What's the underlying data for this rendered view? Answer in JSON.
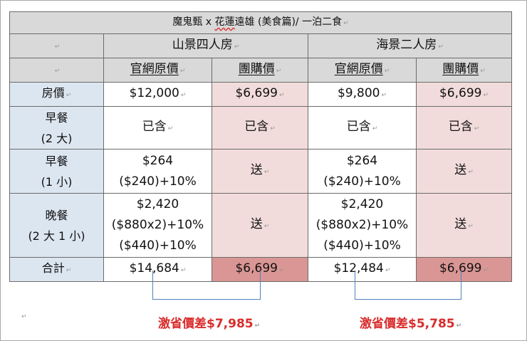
{
  "table": {
    "title_parts": [
      "魔鬼甄 x ",
      "花蓮",
      "遠雄 (美食篇)/ 一泊二食"
    ],
    "room_headers": [
      "山景四人房",
      "海景二人房"
    ],
    "sub_headers": [
      "官網原價",
      "團購價",
      "官網原價",
      "團購價"
    ],
    "rows": [
      {
        "label_lines": [
          "房價"
        ],
        "cells": [
          [
            "$12,000"
          ],
          [
            "$6,699"
          ],
          [
            "$9,800"
          ],
          [
            "$6,699"
          ]
        ]
      },
      {
        "label_lines": [
          "早餐",
          "(2 大)"
        ],
        "cells": [
          [
            "已含"
          ],
          [
            "已含"
          ],
          [
            "已含"
          ],
          [
            "已含"
          ]
        ]
      },
      {
        "label_lines": [
          "早餐",
          "(1 小)"
        ],
        "cells": [
          [
            "$264",
            "($240)+10%"
          ],
          [
            "送"
          ],
          [
            "$264",
            "($240)+10%"
          ],
          [
            "送"
          ]
        ]
      },
      {
        "label_lines": [
          "晚餐",
          "(2 大 1 小)"
        ],
        "cells": [
          [
            "$2,420",
            "($880x2)+10%",
            "($440)+10%"
          ],
          [
            "送"
          ],
          [
            "$2,420",
            "($880x2)+10%",
            "($440)+10%"
          ],
          [
            "送"
          ]
        ]
      },
      {
        "label_lines": [
          "合計"
        ],
        "cells": [
          [
            "$14,684"
          ],
          [
            "$6,699"
          ],
          [
            "$12,484"
          ],
          [
            "$6,699"
          ]
        ]
      }
    ]
  },
  "savings": [
    "激省價差$7,985",
    "激省價差$5,785"
  ],
  "colors": {
    "header_gray": "#d9d9d9",
    "label_blue": "#dce6f1",
    "group_pink": "#f2dcdb",
    "total_pink": "#d99694",
    "savings_red": "#d92b2b",
    "bracket_blue": "#4f81bd"
  }
}
